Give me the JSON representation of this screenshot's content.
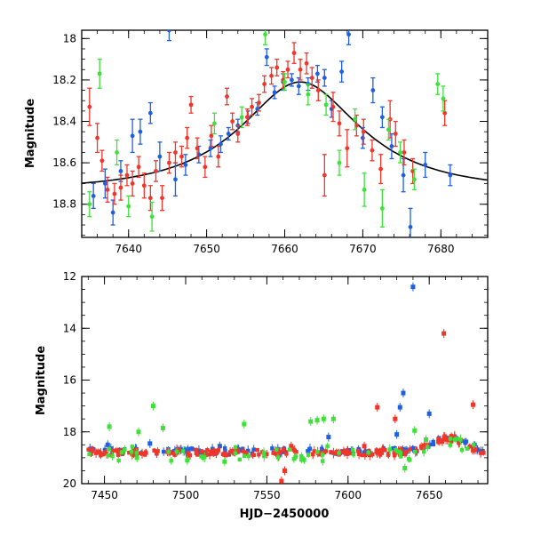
{
  "colors": {
    "blue": "#1f5fe0",
    "red": "#f0362a",
    "green": "#3fe03a",
    "model": "#000000",
    "axes": "#000000"
  },
  "chart_data": [
    {
      "type": "scatter",
      "title": "",
      "xlabel": "",
      "ylabel": "Magnitude",
      "xlim": [
        7634,
        7686
      ],
      "ylim": [
        18.96,
        17.96
      ],
      "y_inverted": true,
      "xticks": [
        7640,
        7650,
        7660,
        7670,
        7680
      ],
      "xtick_labels": [
        "7640",
        "7650",
        "7660",
        "7670",
        "7680"
      ],
      "yticks": [
        18.0,
        18.2,
        18.4,
        18.6,
        18.8
      ],
      "ytick_labels": [
        "18",
        "18.2",
        "18.4",
        "18.6",
        "18.8"
      ],
      "grid": false,
      "legend": "none",
      "model_curve": {
        "type": "microlensing-fit",
        "peak_x": 7662,
        "peak_mag": 18.21,
        "baseline_mag": 18.73,
        "tE": 14
      },
      "series": [
        {
          "color": "blue",
          "points": [
            [
              7635.5,
              18.76,
              0.06
            ],
            [
              7637.0,
              18.7,
              0.07
            ],
            [
              7638.0,
              18.84,
              0.06
            ],
            [
              7639.0,
              18.64,
              0.05
            ],
            [
              7640.5,
              18.47,
              0.08
            ],
            [
              7641.5,
              18.45,
              0.06
            ],
            [
              7642.8,
              18.36,
              0.05
            ],
            [
              7644.0,
              18.57,
              0.07
            ],
            [
              7645.2,
              17.96,
              0.05
            ],
            [
              7646.0,
              18.68,
              0.08
            ],
            [
              7647.3,
              18.61,
              0.05
            ],
            [
              7649.0,
              18.56,
              0.04
            ],
            [
              7650.5,
              18.53,
              0.04
            ],
            [
              7651.8,
              18.51,
              0.04
            ],
            [
              7652.8,
              18.46,
              0.03
            ],
            [
              7654.0,
              18.42,
              0.03
            ],
            [
              7655.3,
              18.38,
              0.03
            ],
            [
              7656.5,
              18.34,
              0.03
            ],
            [
              7657.7,
              18.09,
              0.04
            ],
            [
              7658.7,
              18.26,
              0.03
            ],
            [
              7659.8,
              18.21,
              0.04
            ],
            [
              7660.9,
              18.2,
              0.03
            ],
            [
              7661.8,
              18.23,
              0.04
            ],
            [
              7663.0,
              18.22,
              0.03
            ],
            [
              7664.2,
              18.17,
              0.04
            ],
            [
              7665.1,
              18.19,
              0.04
            ],
            [
              7666.0,
              18.34,
              0.04
            ],
            [
              7667.3,
              18.16,
              0.05
            ],
            [
              7668.2,
              17.98,
              0.05
            ],
            [
              7670.0,
              18.48,
              0.05
            ],
            [
              7671.3,
              18.25,
              0.06
            ],
            [
              7672.5,
              18.38,
              0.05
            ],
            [
              7673.7,
              18.52,
              0.06
            ],
            [
              7675.2,
              18.66,
              0.08
            ],
            [
              7676.1,
              18.91,
              0.09
            ],
            [
              7678.0,
              18.61,
              0.06
            ],
            [
              7681.2,
              18.66,
              0.05
            ]
          ]
        },
        {
          "color": "red",
          "points": [
            [
              7635.0,
              18.33,
              0.09
            ],
            [
              7636.0,
              18.48,
              0.07
            ],
            [
              7636.6,
              18.59,
              0.05
            ],
            [
              7637.3,
              18.73,
              0.06
            ],
            [
              7638.2,
              18.75,
              0.05
            ],
            [
              7639.0,
              18.72,
              0.06
            ],
            [
              7639.8,
              18.66,
              0.05
            ],
            [
              7640.5,
              18.7,
              0.06
            ],
            [
              7641.3,
              18.62,
              0.05
            ],
            [
              7642.0,
              18.71,
              0.06
            ],
            [
              7642.8,
              18.77,
              0.06
            ],
            [
              7643.5,
              18.64,
              0.05
            ],
            [
              7644.3,
              18.77,
              0.06
            ],
            [
              7645.2,
              18.6,
              0.05
            ],
            [
              7646.0,
              18.55,
              0.05
            ],
            [
              7646.8,
              18.57,
              0.05
            ],
            [
              7647.5,
              18.48,
              0.05
            ],
            [
              7648.0,
              18.32,
              0.04
            ],
            [
              7648.8,
              18.53,
              0.05
            ],
            [
              7649.8,
              18.62,
              0.05
            ],
            [
              7650.6,
              18.47,
              0.05
            ],
            [
              7651.5,
              18.57,
              0.05
            ],
            [
              7652.6,
              18.28,
              0.04
            ],
            [
              7653.3,
              18.4,
              0.04
            ],
            [
              7654.0,
              18.46,
              0.04
            ],
            [
              7655.2,
              18.38,
              0.04
            ],
            [
              7655.8,
              18.33,
              0.04
            ],
            [
              7656.7,
              18.31,
              0.04
            ],
            [
              7657.4,
              18.22,
              0.04
            ],
            [
              7658.3,
              18.18,
              0.04
            ],
            [
              7659.0,
              18.14,
              0.04
            ],
            [
              7659.8,
              18.2,
              0.04
            ],
            [
              7660.4,
              18.15,
              0.04
            ],
            [
              7661.2,
              18.07,
              0.05
            ],
            [
              7662.0,
              18.15,
              0.05
            ],
            [
              7662.8,
              18.12,
              0.05
            ],
            [
              7663.5,
              18.19,
              0.05
            ],
            [
              7664.3,
              18.25,
              0.05
            ],
            [
              7665.1,
              18.66,
              0.1
            ],
            [
              7666.2,
              18.33,
              0.07
            ],
            [
              7667.0,
              18.41,
              0.06
            ],
            [
              7668.0,
              18.53,
              0.09
            ],
            [
              7669.2,
              18.42,
              0.05
            ],
            [
              7670.1,
              18.45,
              0.06
            ],
            [
              7671.2,
              18.54,
              0.05
            ],
            [
              7672.3,
              18.63,
              0.07
            ],
            [
              7673.5,
              18.39,
              0.09
            ],
            [
              7674.2,
              18.46,
              0.06
            ],
            [
              7675.3,
              18.55,
              0.06
            ],
            [
              7676.4,
              18.64,
              0.06
            ],
            [
              7680.5,
              18.36,
              0.06
            ]
          ]
        },
        {
          "color": "green",
          "points": [
            [
              7635.0,
              18.8,
              0.06
            ],
            [
              7636.3,
              18.17,
              0.07
            ],
            [
              7638.5,
              18.55,
              0.06
            ],
            [
              7640.0,
              18.81,
              0.05
            ],
            [
              7643.0,
              18.86,
              0.07
            ],
            [
              7651.0,
              18.41,
              0.05
            ],
            [
              7654.5,
              18.38,
              0.05
            ],
            [
              7657.5,
              17.98,
              0.05
            ],
            [
              7660.0,
              18.21,
              0.04
            ],
            [
              7663.0,
              18.27,
              0.05
            ],
            [
              7665.3,
              18.32,
              0.05
            ],
            [
              7667.0,
              18.6,
              0.06
            ],
            [
              7669.0,
              18.39,
              0.05
            ],
            [
              7670.2,
              18.73,
              0.08
            ],
            [
              7672.5,
              18.82,
              0.09
            ],
            [
              7673.3,
              18.44,
              0.05
            ],
            [
              7674.8,
              18.55,
              0.05
            ],
            [
              7676.6,
              18.68,
              0.05
            ],
            [
              7679.6,
              18.22,
              0.05
            ],
            [
              7680.3,
              18.29,
              0.06
            ]
          ]
        }
      ]
    },
    {
      "type": "scatter",
      "title": "",
      "xlabel": "HJD−2450000",
      "ylabel": "Magnitude",
      "xlim": [
        7436,
        7686
      ],
      "ylim": [
        20,
        12
      ],
      "y_inverted": true,
      "xticks": [
        7450,
        7500,
        7550,
        7600,
        7650
      ],
      "xtick_labels": [
        "7450",
        "7500",
        "7550",
        "7600",
        "7650"
      ],
      "yticks": [
        12,
        14,
        16,
        18,
        20
      ],
      "ytick_labels": [
        "12",
        "14",
        "16",
        "18",
        "20"
      ],
      "grid": false,
      "legend": "none",
      "series": [
        {
          "color": "blue",
          "baseline": 18.75,
          "scatter": 0.12,
          "count": 130,
          "outliers": [
            [
              7640,
              12.4
            ],
            [
              7634,
              16.5
            ],
            [
              7632,
              17.05
            ],
            [
              7650,
              17.3
            ],
            [
              7630,
              18.1
            ],
            [
              7588,
              18.2
            ],
            [
              7478,
              18.45
            ],
            [
              7452,
              18.5
            ],
            [
              7521,
              18.55
            ]
          ]
        },
        {
          "color": "red",
          "baseline": 18.8,
          "scatter": 0.12,
          "count": 180,
          "outliers": [
            [
              7659,
              14.2
            ],
            [
              7677,
              16.95
            ],
            [
              7618,
              17.05
            ],
            [
              7629,
              17.5
            ],
            [
              7561,
              19.5
            ],
            [
              7559,
              19.9
            ],
            [
              7610,
              18.55
            ],
            [
              7565,
              18.55
            ]
          ]
        },
        {
          "color": "green",
          "baseline": 18.85,
          "scatter": 0.3,
          "count": 60,
          "outliers": [
            [
              7480,
              17.0
            ],
            [
              7453,
              17.8
            ],
            [
              7591,
              17.5
            ],
            [
              7585,
              17.5
            ],
            [
              7581,
              17.55
            ],
            [
              7577,
              17.6
            ],
            [
              7486,
              17.85
            ],
            [
              7536,
              17.7
            ],
            [
              7471,
              18.0
            ],
            [
              7641,
              17.95
            ],
            [
              7470,
              19.0
            ],
            [
              7524,
              19.15
            ],
            [
              7635,
              19.4
            ],
            [
              7501,
              19.1
            ],
            [
              7648,
              18.3
            ]
          ]
        }
      ]
    }
  ]
}
